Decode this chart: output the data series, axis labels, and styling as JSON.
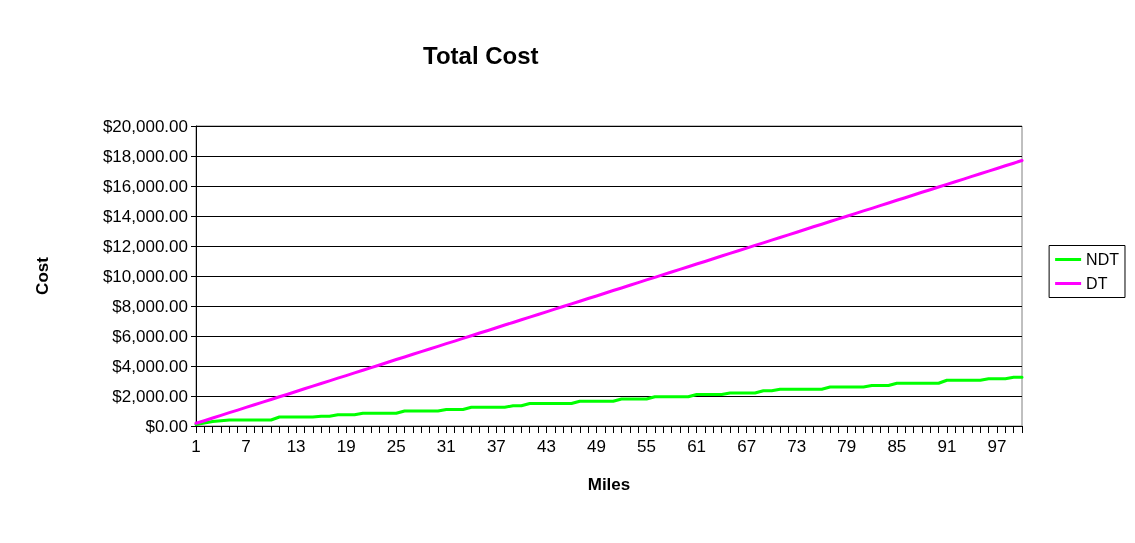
{
  "chart_data": {
    "type": "line",
    "title": "Total Cost",
    "xlabel": "Miles",
    "ylabel": "Cost",
    "categories": [
      "1",
      null,
      null,
      null,
      null,
      null,
      "7",
      null,
      null,
      null,
      null,
      null,
      "13",
      null,
      null,
      null,
      null,
      null,
      "19",
      null,
      null,
      null,
      null,
      null,
      "25",
      null,
      null,
      null,
      null,
      null,
      "31",
      null,
      null,
      null,
      null,
      null,
      "37",
      null,
      null,
      null,
      null,
      null,
      "43",
      null,
      null,
      null,
      null,
      null,
      "49",
      null,
      null,
      null,
      null,
      null,
      "55",
      null,
      null,
      null,
      null,
      null,
      "61",
      null,
      null,
      null,
      null,
      null,
      "67",
      null,
      null,
      null,
      null,
      null,
      "73",
      null,
      null,
      null,
      null,
      null,
      "79",
      null,
      null,
      null,
      null,
      null,
      "85",
      null,
      null,
      null,
      null,
      null,
      "91",
      null,
      null,
      null,
      null,
      null,
      "97",
      null,
      null,
      null
    ],
    "series": [
      {
        "name": "NDT",
        "color": "#00ff00",
        "values": [
          100,
          200,
          300,
          350,
          400,
          400,
          400,
          400,
          400,
          400,
          600,
          600,
          600,
          600,
          600,
          650,
          650,
          750,
          750,
          750,
          850,
          850,
          850,
          850,
          850,
          1000,
          1000,
          1000,
          1000,
          1000,
          1100,
          1100,
          1100,
          1250,
          1250,
          1250,
          1250,
          1250,
          1350,
          1350,
          1500,
          1500,
          1500,
          1500,
          1500,
          1500,
          1650,
          1650,
          1650,
          1650,
          1650,
          1800,
          1800,
          1800,
          1800,
          1950,
          1950,
          1950,
          1950,
          1950,
          2100,
          2100,
          2100,
          2100,
          2200,
          2200,
          2200,
          2200,
          2350,
          2350,
          2450,
          2450,
          2450,
          2450,
          2450,
          2450,
          2600,
          2600,
          2600,
          2600,
          2600,
          2700,
          2700,
          2700,
          2850,
          2850,
          2850,
          2850,
          2850,
          2850,
          3050,
          3050,
          3050,
          3050,
          3050,
          3150,
          3150,
          3150,
          3250,
          3250
        ]
      },
      {
        "name": "DT",
        "color": "#ff00ff",
        "values": [
          180,
          350,
          530,
          710,
          890,
          1060,
          1240,
          1420,
          1590,
          1770,
          1950,
          2120,
          2300,
          2480,
          2660,
          2830,
          3010,
          3190,
          3360,
          3540,
          3720,
          3890,
          4070,
          4250,
          4430,
          4600,
          4780,
          4960,
          5130,
          5310,
          5490,
          5660,
          5840,
          6020,
          6200,
          6370,
          6550,
          6730,
          6900,
          7080,
          7260,
          7430,
          7610,
          7790,
          7970,
          8140,
          8320,
          8500,
          8670,
          8850,
          9030,
          9200,
          9380,
          9560,
          9740,
          9910,
          10090,
          10270,
          10440,
          10620,
          10800,
          10970,
          11150,
          11330,
          11510,
          11680,
          11860,
          12040,
          12210,
          12390,
          12570,
          12740,
          12920,
          13100,
          13280,
          13450,
          13630,
          13810,
          13980,
          14160,
          14340,
          14510,
          14690,
          14870,
          15050,
          15220,
          15400,
          15580,
          15750,
          15930,
          16110,
          16280,
          16460,
          16640,
          16820,
          16990,
          17170,
          17350,
          17520,
          17700
        ]
      }
    ],
    "ylim": [
      0,
      20000
    ],
    "yticks": [
      {
        "value": 0,
        "label": "$0.00"
      },
      {
        "value": 2000,
        "label": "$2,000.00"
      },
      {
        "value": 4000,
        "label": "$4,000.00"
      },
      {
        "value": 6000,
        "label": "$6,000.00"
      },
      {
        "value": 8000,
        "label": "$8,000.00"
      },
      {
        "value": 10000,
        "label": "$10,000.00"
      },
      {
        "value": 12000,
        "label": "$12,000.00"
      },
      {
        "value": 14000,
        "label": "$14,000.00"
      },
      {
        "value": 16000,
        "label": "$16,000.00"
      },
      {
        "value": 18000,
        "label": "$18,000.00"
      },
      {
        "value": 20000,
        "label": "$20,000.00"
      }
    ],
    "grid": "y",
    "legend": "right",
    "marker": "none",
    "line_style": "solid"
  }
}
